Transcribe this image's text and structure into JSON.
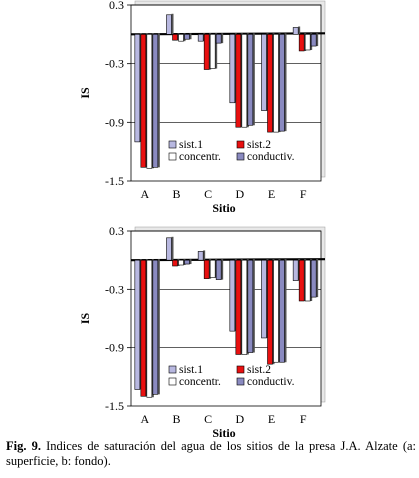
{
  "chart_data": [
    {
      "type": "bar",
      "categories": [
        "A",
        "B",
        "C",
        "D",
        "E",
        "F"
      ],
      "xlabel": "Sitio",
      "ylabel": "IS",
      "ylim": [
        -1.5,
        0.3
      ],
      "yticks": [
        0.3,
        -0.3,
        -0.9,
        -1.5
      ],
      "reference_lines": [
        0.3,
        -0.3,
        -0.9
      ],
      "legend_placement": "bottom-right",
      "series": [
        {
          "name": "sist.1",
          "color": "#b8b8e0",
          "values": [
            -1.1,
            0.2,
            -0.07,
            -0.7,
            -0.78,
            0.07
          ]
        },
        {
          "name": "sist.2",
          "color": "#e81010",
          "values": [
            -1.36,
            -0.06,
            -0.36,
            -0.95,
            -1.0,
            -0.17
          ]
        },
        {
          "name": "concentr.",
          "color": "#ffffff",
          "values": [
            -1.37,
            -0.07,
            -0.35,
            -0.95,
            -1.0,
            -0.16
          ]
        },
        {
          "name": "conductiv.",
          "color": "#8a8ac0",
          "values": [
            -1.36,
            -0.05,
            -0.09,
            -0.93,
            -0.99,
            -0.12
          ]
        }
      ]
    },
    {
      "type": "bar",
      "categories": [
        "A",
        "B",
        "C",
        "D",
        "E",
        "F"
      ],
      "xlabel": "Sitio",
      "ylabel": "IS",
      "ylim": [
        -1.5,
        0.3
      ],
      "yticks": [
        0.3,
        -0.3,
        -0.9,
        -1.5
      ],
      "reference_lines": [
        0.3,
        -0.3,
        -0.9
      ],
      "legend_placement": "bottom-right",
      "series": [
        {
          "name": "sist.1",
          "color": "#b8b8e0",
          "values": [
            -1.33,
            0.23,
            0.09,
            -0.73,
            -0.8,
            -0.21
          ]
        },
        {
          "name": "sist.2",
          "color": "#e81010",
          "values": [
            -1.4,
            -0.06,
            -0.19,
            -0.97,
            -1.07,
            -0.42
          ]
        },
        {
          "name": "concentr.",
          "color": "#ffffff",
          "values": [
            -1.41,
            -0.05,
            -0.18,
            -0.97,
            -1.05,
            -0.42
          ]
        },
        {
          "name": "conductiv.",
          "color": "#8a8ac0",
          "values": [
            -1.38,
            -0.04,
            -0.2,
            -0.95,
            -1.05,
            -0.38
          ]
        }
      ]
    }
  ],
  "caption": {
    "label": "Fig. 9.",
    "text": " Indices de saturación del agua de los sitios de la presa J.A. Alzate (a: superficie, b: fondo)."
  }
}
